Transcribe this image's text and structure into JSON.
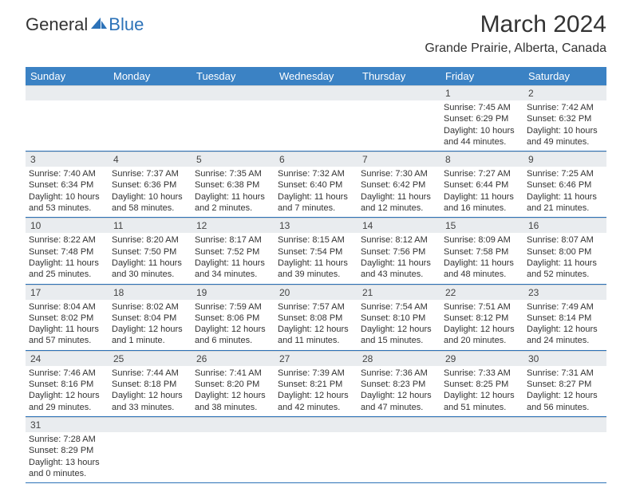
{
  "logo": {
    "text1": "General",
    "text2": "Blue"
  },
  "title": "March 2024",
  "subtitle": "Grande Prairie, Alberta, Canada",
  "colors": {
    "header_bg": "#3b82c4",
    "header_text": "#ffffff",
    "daynum_bg": "#e9ecef",
    "divider": "#2c72b8"
  },
  "day_names": [
    "Sunday",
    "Monday",
    "Tuesday",
    "Wednesday",
    "Thursday",
    "Friday",
    "Saturday"
  ],
  "weeks": [
    {
      "nums": [
        "",
        "",
        "",
        "",
        "",
        "1",
        "2"
      ],
      "cells": [
        {
          "sunrise": "",
          "sunset": "",
          "daylight": ""
        },
        {
          "sunrise": "",
          "sunset": "",
          "daylight": ""
        },
        {
          "sunrise": "",
          "sunset": "",
          "daylight": ""
        },
        {
          "sunrise": "",
          "sunset": "",
          "daylight": ""
        },
        {
          "sunrise": "",
          "sunset": "",
          "daylight": ""
        },
        {
          "sunrise": "Sunrise: 7:45 AM",
          "sunset": "Sunset: 6:29 PM",
          "daylight": "Daylight: 10 hours and 44 minutes."
        },
        {
          "sunrise": "Sunrise: 7:42 AM",
          "sunset": "Sunset: 6:32 PM",
          "daylight": "Daylight: 10 hours and 49 minutes."
        }
      ]
    },
    {
      "nums": [
        "3",
        "4",
        "5",
        "6",
        "7",
        "8",
        "9"
      ],
      "cells": [
        {
          "sunrise": "Sunrise: 7:40 AM",
          "sunset": "Sunset: 6:34 PM",
          "daylight": "Daylight: 10 hours and 53 minutes."
        },
        {
          "sunrise": "Sunrise: 7:37 AM",
          "sunset": "Sunset: 6:36 PM",
          "daylight": "Daylight: 10 hours and 58 minutes."
        },
        {
          "sunrise": "Sunrise: 7:35 AM",
          "sunset": "Sunset: 6:38 PM",
          "daylight": "Daylight: 11 hours and 2 minutes."
        },
        {
          "sunrise": "Sunrise: 7:32 AM",
          "sunset": "Sunset: 6:40 PM",
          "daylight": "Daylight: 11 hours and 7 minutes."
        },
        {
          "sunrise": "Sunrise: 7:30 AM",
          "sunset": "Sunset: 6:42 PM",
          "daylight": "Daylight: 11 hours and 12 minutes."
        },
        {
          "sunrise": "Sunrise: 7:27 AM",
          "sunset": "Sunset: 6:44 PM",
          "daylight": "Daylight: 11 hours and 16 minutes."
        },
        {
          "sunrise": "Sunrise: 7:25 AM",
          "sunset": "Sunset: 6:46 PM",
          "daylight": "Daylight: 11 hours and 21 minutes."
        }
      ]
    },
    {
      "nums": [
        "10",
        "11",
        "12",
        "13",
        "14",
        "15",
        "16"
      ],
      "cells": [
        {
          "sunrise": "Sunrise: 8:22 AM",
          "sunset": "Sunset: 7:48 PM",
          "daylight": "Daylight: 11 hours and 25 minutes."
        },
        {
          "sunrise": "Sunrise: 8:20 AM",
          "sunset": "Sunset: 7:50 PM",
          "daylight": "Daylight: 11 hours and 30 minutes."
        },
        {
          "sunrise": "Sunrise: 8:17 AM",
          "sunset": "Sunset: 7:52 PM",
          "daylight": "Daylight: 11 hours and 34 minutes."
        },
        {
          "sunrise": "Sunrise: 8:15 AM",
          "sunset": "Sunset: 7:54 PM",
          "daylight": "Daylight: 11 hours and 39 minutes."
        },
        {
          "sunrise": "Sunrise: 8:12 AM",
          "sunset": "Sunset: 7:56 PM",
          "daylight": "Daylight: 11 hours and 43 minutes."
        },
        {
          "sunrise": "Sunrise: 8:09 AM",
          "sunset": "Sunset: 7:58 PM",
          "daylight": "Daylight: 11 hours and 48 minutes."
        },
        {
          "sunrise": "Sunrise: 8:07 AM",
          "sunset": "Sunset: 8:00 PM",
          "daylight": "Daylight: 11 hours and 52 minutes."
        }
      ]
    },
    {
      "nums": [
        "17",
        "18",
        "19",
        "20",
        "21",
        "22",
        "23"
      ],
      "cells": [
        {
          "sunrise": "Sunrise: 8:04 AM",
          "sunset": "Sunset: 8:02 PM",
          "daylight": "Daylight: 11 hours and 57 minutes."
        },
        {
          "sunrise": "Sunrise: 8:02 AM",
          "sunset": "Sunset: 8:04 PM",
          "daylight": "Daylight: 12 hours and 1 minute."
        },
        {
          "sunrise": "Sunrise: 7:59 AM",
          "sunset": "Sunset: 8:06 PM",
          "daylight": "Daylight: 12 hours and 6 minutes."
        },
        {
          "sunrise": "Sunrise: 7:57 AM",
          "sunset": "Sunset: 8:08 PM",
          "daylight": "Daylight: 12 hours and 11 minutes."
        },
        {
          "sunrise": "Sunrise: 7:54 AM",
          "sunset": "Sunset: 8:10 PM",
          "daylight": "Daylight: 12 hours and 15 minutes."
        },
        {
          "sunrise": "Sunrise: 7:51 AM",
          "sunset": "Sunset: 8:12 PM",
          "daylight": "Daylight: 12 hours and 20 minutes."
        },
        {
          "sunrise": "Sunrise: 7:49 AM",
          "sunset": "Sunset: 8:14 PM",
          "daylight": "Daylight: 12 hours and 24 minutes."
        }
      ]
    },
    {
      "nums": [
        "24",
        "25",
        "26",
        "27",
        "28",
        "29",
        "30"
      ],
      "cells": [
        {
          "sunrise": "Sunrise: 7:46 AM",
          "sunset": "Sunset: 8:16 PM",
          "daylight": "Daylight: 12 hours and 29 minutes."
        },
        {
          "sunrise": "Sunrise: 7:44 AM",
          "sunset": "Sunset: 8:18 PM",
          "daylight": "Daylight: 12 hours and 33 minutes."
        },
        {
          "sunrise": "Sunrise: 7:41 AM",
          "sunset": "Sunset: 8:20 PM",
          "daylight": "Daylight: 12 hours and 38 minutes."
        },
        {
          "sunrise": "Sunrise: 7:39 AM",
          "sunset": "Sunset: 8:21 PM",
          "daylight": "Daylight: 12 hours and 42 minutes."
        },
        {
          "sunrise": "Sunrise: 7:36 AM",
          "sunset": "Sunset: 8:23 PM",
          "daylight": "Daylight: 12 hours and 47 minutes."
        },
        {
          "sunrise": "Sunrise: 7:33 AM",
          "sunset": "Sunset: 8:25 PM",
          "daylight": "Daylight: 12 hours and 51 minutes."
        },
        {
          "sunrise": "Sunrise: 7:31 AM",
          "sunset": "Sunset: 8:27 PM",
          "daylight": "Daylight: 12 hours and 56 minutes."
        }
      ]
    },
    {
      "nums": [
        "31",
        "",
        "",
        "",
        "",
        "",
        ""
      ],
      "cells": [
        {
          "sunrise": "Sunrise: 7:28 AM",
          "sunset": "Sunset: 8:29 PM",
          "daylight": "Daylight: 13 hours and 0 minutes."
        },
        {
          "sunrise": "",
          "sunset": "",
          "daylight": ""
        },
        {
          "sunrise": "",
          "sunset": "",
          "daylight": ""
        },
        {
          "sunrise": "",
          "sunset": "",
          "daylight": ""
        },
        {
          "sunrise": "",
          "sunset": "",
          "daylight": ""
        },
        {
          "sunrise": "",
          "sunset": "",
          "daylight": ""
        },
        {
          "sunrise": "",
          "sunset": "",
          "daylight": ""
        }
      ]
    }
  ]
}
